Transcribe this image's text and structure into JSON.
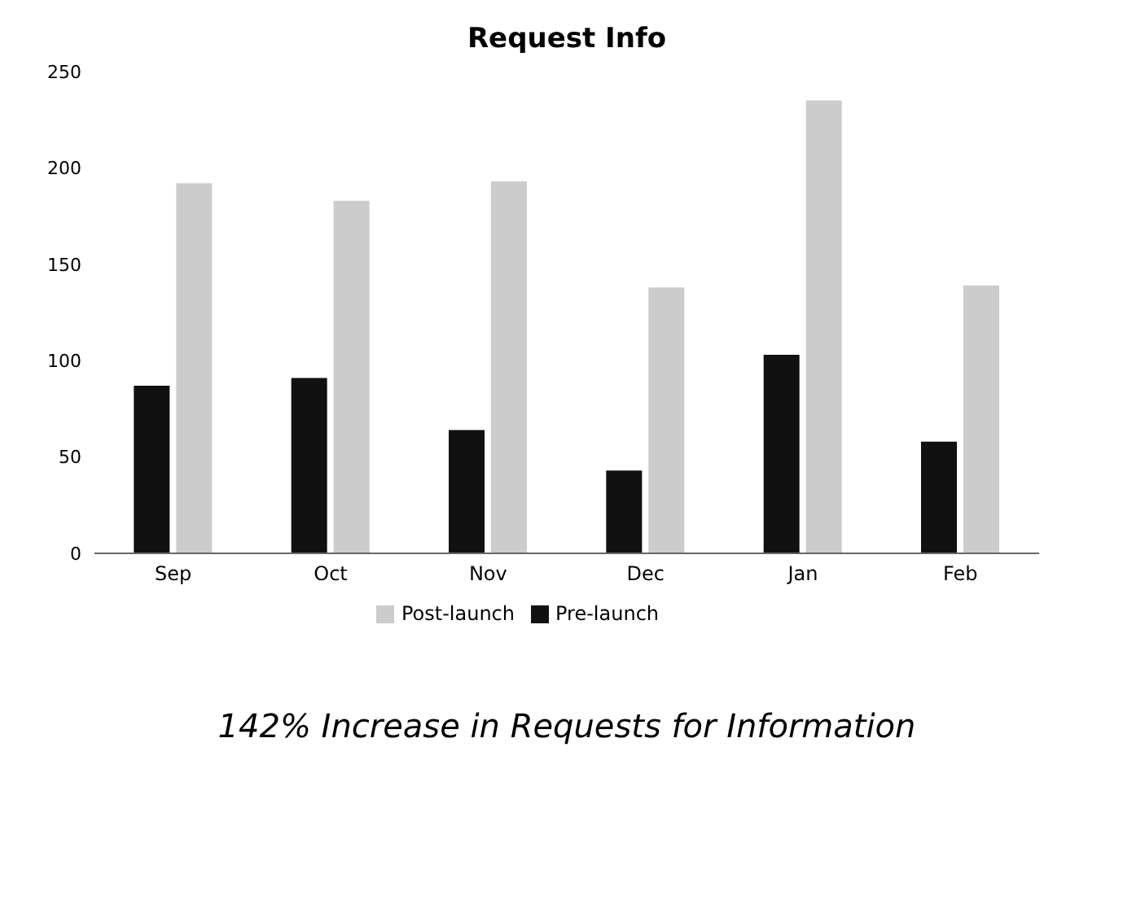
{
  "chart_data": {
    "type": "bar",
    "title": "Request Info",
    "categories": [
      "Sep",
      "Oct",
      "Nov",
      "Dec",
      "Jan",
      "Feb"
    ],
    "series": [
      {
        "name": "Pre-launch",
        "color": "#111111",
        "values": [
          87,
          91,
          64,
          43,
          103,
          58
        ]
      },
      {
        "name": "Post-launch",
        "color": "#cccccc",
        "values": [
          192,
          183,
          193,
          138,
          235,
          139
        ]
      }
    ],
    "ylim": [
      0,
      250
    ],
    "yticks": [
      0,
      50,
      100,
      150,
      200,
      250
    ],
    "grid": false,
    "legend": "bottom",
    "annotations": [
      "142% Increase in Requests for Information"
    ]
  }
}
